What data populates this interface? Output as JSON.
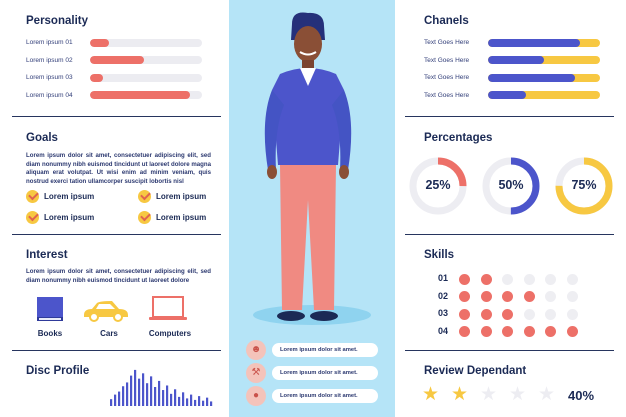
{
  "colors": {
    "navy": "#27355e",
    "salmon": "#ed7068",
    "track": "#ececf1",
    "blue": "#4c55cb",
    "yellow": "#f7c842",
    "skyblue": "#b5e4f7",
    "dotGray": "#eeeef2"
  },
  "personality": {
    "title": "Personality",
    "items": [
      {
        "label": "Lorem ipsum 01",
        "value": 0.17
      },
      {
        "label": "Lorem ipsum 02",
        "value": 0.48
      },
      {
        "label": "Lorem ipsum 03",
        "value": 0.12
      },
      {
        "label": "Lorem ipsum 04",
        "value": 0.89
      }
    ]
  },
  "goals": {
    "title": "Goals",
    "text": "Lorem ipsum dolor sit amet, consectetuer adipiscing elit, sed diam nonummy nibh euismod tincidunt ut laoreet dolore magna aliquam erat volutpat. Ut wisi enim ad minim veniam, quis nostrud exerci tation ullamcorper suscipit lobortis nisl",
    "checks": [
      "Lorem ipsum",
      "Lorem ipsum",
      "Lorem ipsum",
      "Lorem ipsum"
    ]
  },
  "interest": {
    "title": "Interest",
    "text": "Lorem ipsum dolor sit amet, consectetuer adipiscing elit, sed diam nonummy nibh euismod tincidunt ut laoreet dolore",
    "items": [
      {
        "label": "Books",
        "icon": "book-icon"
      },
      {
        "label": "Cars",
        "icon": "car-icon"
      },
      {
        "label": "Computers",
        "icon": "laptop-icon"
      }
    ]
  },
  "disc": {
    "title": "Disc Profile",
    "bars": [
      0.18,
      0.3,
      0.38,
      0.52,
      0.62,
      0.8,
      0.95,
      0.72,
      0.86,
      0.6,
      0.78,
      0.5,
      0.66,
      0.42,
      0.54,
      0.32,
      0.44,
      0.24,
      0.36,
      0.2,
      0.3,
      0.16,
      0.26,
      0.14,
      0.22,
      0.12
    ]
  },
  "center": {
    "pills": [
      {
        "text": "Lorem ipsum dolor sit amet.",
        "icon": "user-icon"
      },
      {
        "text": "Lorem ipsum dolor sit amet.",
        "icon": "wrench-icon"
      },
      {
        "text": "Lorem ipsum dolor sit amet.",
        "icon": "location-pin-icon"
      }
    ]
  },
  "chanels": {
    "title": "Chanels",
    "items": [
      {
        "label": "Text Goes Here",
        "value": 0.82
      },
      {
        "label": "Text Goes Here",
        "value": 0.5
      },
      {
        "label": "Text Goes Here",
        "value": 0.78
      },
      {
        "label": "Text Goes Here",
        "value": 0.34
      }
    ]
  },
  "percentages": {
    "title": "Percentages",
    "items": [
      {
        "label": "25%",
        "value": 0.25,
        "color": "#ed7068"
      },
      {
        "label": "50%",
        "value": 0.5,
        "color": "#4c55cb"
      },
      {
        "label": "75%",
        "value": 0.75,
        "color": "#f7c842"
      }
    ]
  },
  "skills": {
    "title": "Skills",
    "rows": [
      {
        "label": "01",
        "filled": 2
      },
      {
        "label": "02",
        "filled": 4
      },
      {
        "label": "03",
        "filled": 3
      },
      {
        "label": "04",
        "filled": 6
      }
    ],
    "max": 6
  },
  "review": {
    "title": "Review Dependant",
    "stars_filled": 2,
    "stars_total": 5,
    "value_text": "40%"
  }
}
